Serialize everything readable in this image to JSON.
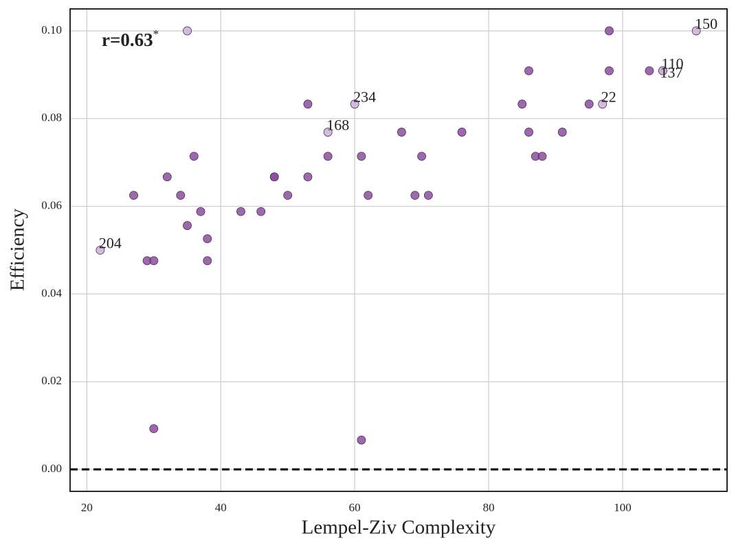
{
  "chart_data": {
    "type": "scatter",
    "xlabel": "Lempel-Ziv Complexity",
    "ylabel": "Efficiency",
    "annotation": "r=0.63",
    "annotation_sup": "*",
    "xlim": [
      17.5,
      115.6
    ],
    "ylim": [
      -0.005,
      0.105
    ],
    "xticks": [
      20,
      40,
      60,
      80,
      100
    ],
    "yticks": [
      {
        "value": 0,
        "label": "0.00"
      },
      {
        "value": 0.02,
        "label": "0.02"
      },
      {
        "value": 0.04,
        "label": "0.04"
      },
      {
        "value": 0.06,
        "label": "0.06"
      },
      {
        "value": 0.08,
        "label": "0.08"
      },
      {
        "value": 0.1,
        "label": "0.10"
      }
    ],
    "grid": true,
    "hline": 0,
    "x": [
      35,
      98,
      111,
      86,
      98,
      104,
      106,
      106,
      53,
      60,
      85,
      95,
      97,
      56,
      67,
      76,
      86,
      91,
      36,
      56,
      61,
      70,
      87,
      88,
      32,
      48,
      48,
      53,
      27,
      34,
      50,
      62,
      69,
      71,
      37,
      43,
      46,
      35,
      38,
      22,
      29,
      30,
      38,
      30,
      61
    ],
    "y": [
      0.1,
      0.1,
      0.1,
      0.0909,
      0.0909,
      0.0909,
      0.0909,
      0.0909,
      0.0833,
      0.0833,
      0.0833,
      0.0833,
      0.0833,
      0.0769,
      0.0769,
      0.0769,
      0.0769,
      0.0769,
      0.0714,
      0.0714,
      0.0714,
      0.0714,
      0.0714,
      0.0714,
      0.0667,
      0.0667,
      0.0667,
      0.0667,
      0.0625,
      0.0625,
      0.0625,
      0.0625,
      0.0625,
      0.0625,
      0.0588,
      0.0588,
      0.0588,
      0.0556,
      0.0526,
      0.05,
      0.0476,
      0.0476,
      0.0476,
      0.0093,
      0.0067
    ],
    "colors": [
      "#cdb0d8",
      "#8a4f9e",
      "#cdb0d8",
      "#8a4f9e",
      "#8a4f9e",
      "#8a4f9e",
      "#cdb0d8",
      "#cdb0d8",
      "#8a4f9e",
      "#cdb0d8",
      "#8a4f9e",
      "#8a4f9e",
      "#cdb0d8",
      "#cdb0d8",
      "#8a4f9e",
      "#8a4f9e",
      "#8a4f9e",
      "#8a4f9e",
      "#8a4f9e",
      "#8a4f9e",
      "#8a4f9e",
      "#8a4f9e",
      "#8a4f9e",
      "#8a4f9e",
      "#8a4f9e",
      "#8a4f9e",
      "#8a4f9e",
      "#8a4f9e",
      "#8a4f9e",
      "#8a4f9e",
      "#8a4f9e",
      "#8a4f9e",
      "#8a4f9e",
      "#8a4f9e",
      "#8a4f9e",
      "#8a4f9e",
      "#8a4f9e",
      "#8a4f9e",
      "#8a4f9e",
      "#cdb0d8",
      "#8a4f9e",
      "#8a4f9e",
      "#8a4f9e",
      "#8a4f9e",
      "#8a4f9e"
    ],
    "labels": [
      null,
      null,
      "150",
      null,
      null,
      null,
      "110",
      "137",
      null,
      "234",
      null,
      null,
      "22",
      "168",
      null,
      null,
      null,
      null,
      null,
      null,
      null,
      null,
      null,
      null,
      null,
      null,
      null,
      null,
      null,
      null,
      null,
      null,
      null,
      null,
      null,
      null,
      null,
      null,
      null,
      "204",
      null,
      null,
      null,
      null,
      null
    ]
  }
}
